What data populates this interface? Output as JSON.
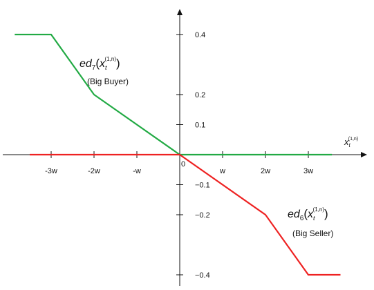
{
  "chart_data": {
    "type": "line",
    "title": "",
    "x_axis": {
      "label_main": "x",
      "label_sub": "t",
      "label_sup": "(1,n)",
      "ticks": [
        {
          "value": -3,
          "label": "-3w"
        },
        {
          "value": -2,
          "label": "-2w"
        },
        {
          "value": -1,
          "label": "-w"
        },
        {
          "value": 0,
          "label": "0"
        },
        {
          "value": 1,
          "label": "w"
        },
        {
          "value": 2,
          "label": "2w"
        },
        {
          "value": 3,
          "label": "3w"
        }
      ]
    },
    "y_axis": {
      "ticks": [
        {
          "value": 0.4,
          "label": "0.4"
        },
        {
          "value": 0.2,
          "label": "0.2"
        },
        {
          "value": 0.1,
          "label": "0.1"
        },
        {
          "value": -0.1,
          "label": "−0.1"
        },
        {
          "value": -0.2,
          "label": "−0.2"
        },
        {
          "value": -0.4,
          "label": "−0.4"
        }
      ]
    },
    "x_range": [
      -4,
      4.4
    ],
    "y_range": [
      -0.44,
      0.48
    ],
    "series": [
      {
        "key": "big-buyer",
        "color": "#22aa44",
        "x": [
          -3.85,
          -3,
          -2,
          0,
          3.55
        ],
        "y": [
          0.4,
          0.4,
          0.2,
          0,
          0
        ],
        "label_prefix": "ed",
        "label_index": "7",
        "label_arg": "x",
        "label_arg_sub": "t",
        "label_arg_sup": "(1,n)",
        "caption": "(Big Buyer)"
      },
      {
        "key": "big-seller",
        "color": "#ee2222",
        "x": [
          -3.5,
          0,
          2,
          3,
          3.75
        ],
        "y": [
          0,
          0,
          -0.2,
          -0.4,
          -0.4
        ],
        "label_prefix": "ed",
        "label_index": "6",
        "label_arg": "x",
        "label_arg_sub": "t",
        "label_arg_sup": "(1,n)",
        "caption": "(Big Seller)"
      }
    ],
    "grid": false,
    "legend": "none"
  }
}
